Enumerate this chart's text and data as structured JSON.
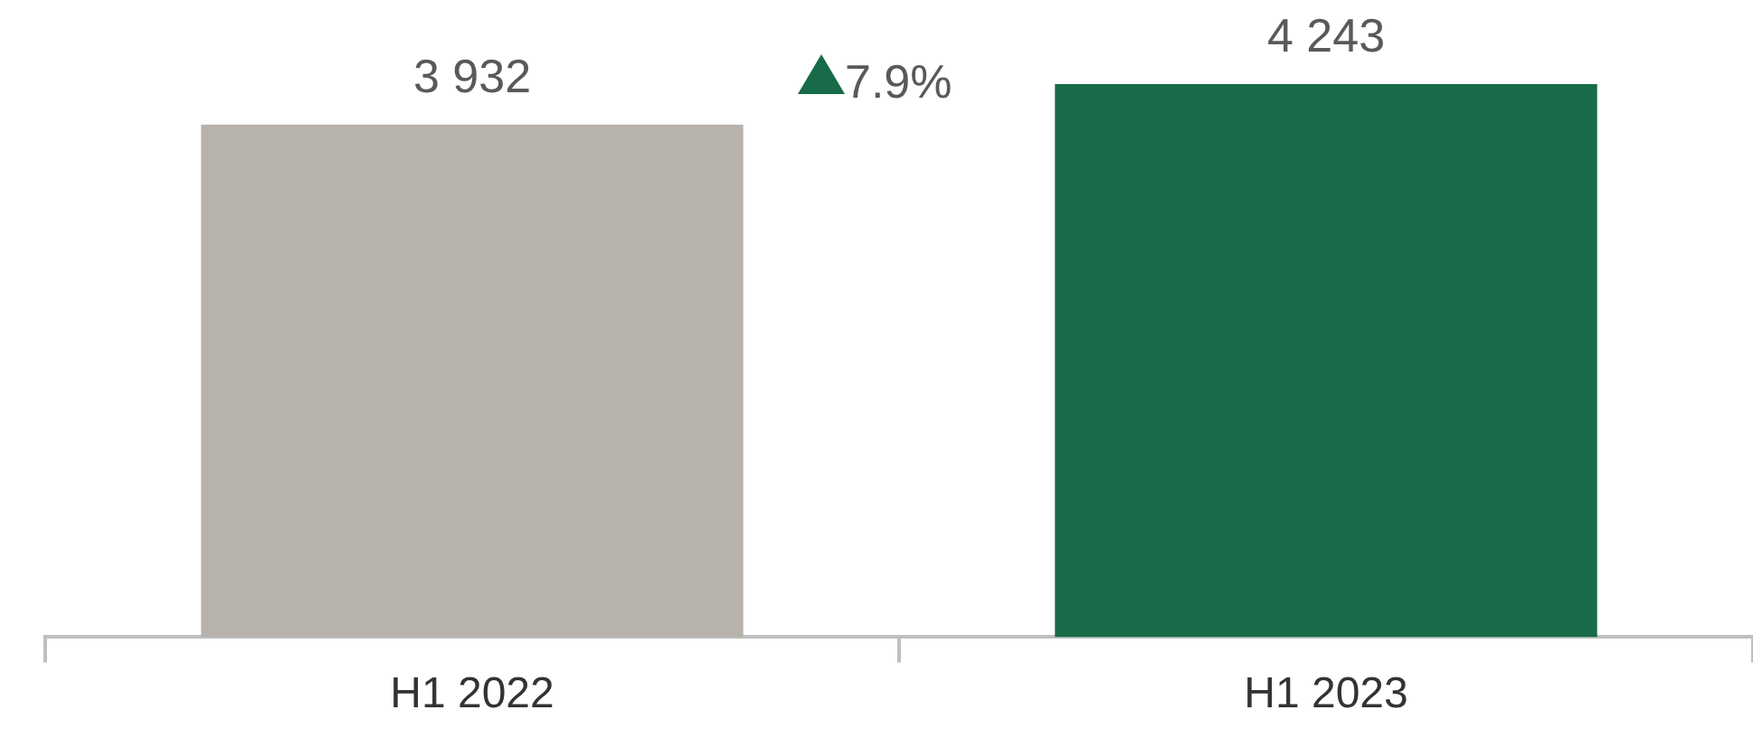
{
  "chart_data": {
    "type": "bar",
    "categories": [
      "H1 2022",
      "H1 2023"
    ],
    "values": [
      3932,
      4243
    ],
    "colors": [
      "#b8b2ac",
      "#176b48"
    ],
    "value_labels": [
      "3 932",
      "4 243"
    ],
    "annotations": [
      "7.9%"
    ]
  }
}
